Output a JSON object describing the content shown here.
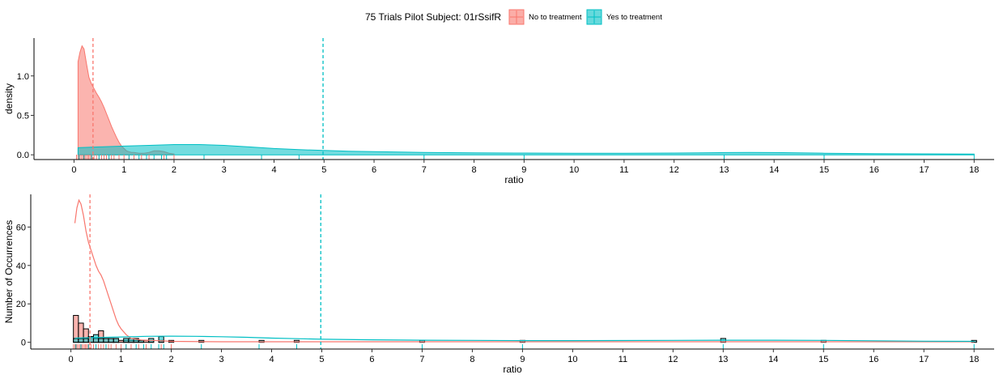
{
  "legend": {
    "title": "75 Trials Pilot Subject:  01rSsifR",
    "items": [
      {
        "label": "No to treatment",
        "color": "#F8766D"
      },
      {
        "label": "Yes to treatment",
        "color": "#00BFC4"
      }
    ]
  },
  "chart_data": [
    {
      "type": "area",
      "xlabel": "ratio",
      "ylabel": "density",
      "xlim": [
        -0.8,
        18.4
      ],
      "ylim": [
        -0.06,
        1.48
      ],
      "xticks": [
        0,
        1,
        2,
        3,
        4,
        5,
        6,
        7,
        8,
        9,
        10,
        11,
        12,
        13,
        14,
        15,
        16,
        17,
        18
      ],
      "yticks": [
        0.0,
        0.5,
        1.0
      ],
      "ytick_labels": [
        "0.0",
        "0.5",
        "1.0"
      ],
      "grid": false,
      "series": [
        {
          "name": "No to treatment",
          "color": "#F8766D",
          "mean": 0.38,
          "x": [
            0.08,
            0.12,
            0.16,
            0.2,
            0.25,
            0.3,
            0.35,
            0.4,
            0.45,
            0.5,
            0.55,
            0.6,
            0.65,
            0.7,
            0.75,
            0.8,
            0.85,
            0.9,
            0.95,
            1.0,
            1.05,
            1.1,
            1.15,
            1.2,
            1.3,
            1.4,
            1.5,
            1.6,
            1.7,
            1.8,
            1.9,
            2.0
          ],
          "y": [
            1.18,
            1.3,
            1.38,
            1.34,
            1.15,
            0.98,
            0.9,
            0.84,
            0.78,
            0.73,
            0.67,
            0.6,
            0.52,
            0.44,
            0.36,
            0.29,
            0.22,
            0.16,
            0.11,
            0.08,
            0.05,
            0.04,
            0.03,
            0.03,
            0.02,
            0.02,
            0.03,
            0.05,
            0.05,
            0.04,
            0.02,
            0.01
          ]
        },
        {
          "name": "Yes to treatment",
          "color": "#00BFC4",
          "mean": 4.98,
          "x": [
            0.08,
            0.5,
            1.0,
            1.5,
            2.0,
            2.5,
            3.0,
            3.5,
            4.0,
            4.5,
            5.0,
            5.5,
            6.0,
            7.0,
            8.0,
            9.0,
            10.0,
            11.0,
            12.0,
            12.5,
            13.0,
            13.5,
            14.0,
            14.5,
            15.0,
            16.0,
            17.0,
            18.0
          ],
          "y": [
            0.09,
            0.1,
            0.11,
            0.12,
            0.13,
            0.13,
            0.12,
            0.1,
            0.08,
            0.065,
            0.055,
            0.045,
            0.04,
            0.03,
            0.025,
            0.022,
            0.02,
            0.02,
            0.022,
            0.025,
            0.028,
            0.03,
            0.028,
            0.025,
            0.02,
            0.015,
            0.012,
            0.01
          ]
        }
      ],
      "rug": {
        "No to treatment": [
          0.05,
          0.08,
          0.1,
          0.12,
          0.15,
          0.18,
          0.2,
          0.22,
          0.25,
          0.28,
          0.3,
          0.33,
          0.36,
          0.4,
          0.45,
          0.5,
          0.55,
          0.6,
          0.65,
          0.7,
          0.75,
          0.8,
          0.9,
          1.0,
          1.1,
          1.2,
          1.35,
          1.5,
          1.8,
          2.0
        ],
        "Yes to treatment": [
          0.1,
          0.2,
          0.35,
          0.5,
          0.7,
          1.1,
          1.3,
          1.45,
          1.6,
          1.75,
          1.85,
          2.6,
          3.75,
          4.5,
          7.0,
          9.0,
          13.0,
          15.0,
          18.0
        ]
      }
    },
    {
      "type": "bar",
      "xlabel": "ratio",
      "ylabel": "Number of Occurrences",
      "xlim": [
        -0.8,
        18.4
      ],
      "ylim": [
        -3.5,
        77
      ],
      "xticks": [
        0,
        1,
        2,
        3,
        4,
        5,
        6,
        7,
        8,
        9,
        10,
        11,
        12,
        13,
        14,
        15,
        16,
        17,
        18
      ],
      "yticks": [
        0,
        20,
        40,
        60
      ],
      "grid": false,
      "bin_width": 0.1,
      "histogram": {
        "No to treatment": {
          "color": "#F8766D",
          "x": [
            0.1,
            0.2,
            0.3,
            0.4,
            0.5,
            0.6,
            0.7,
            0.8,
            0.9,
            1.0,
            1.1,
            1.2,
            1.3,
            1.4,
            1.5,
            1.6,
            1.8,
            2.0
          ],
          "counts": [
            14,
            10,
            7,
            3,
            2,
            6,
            2,
            2,
            2,
            1,
            1,
            1,
            1,
            1,
            1,
            1,
            1,
            1
          ]
        },
        "Yes to treatment": {
          "color": "#00BFC4",
          "x": [
            0.1,
            0.2,
            0.3,
            0.4,
            0.5,
            0.6,
            0.7,
            0.8,
            0.9,
            1.1,
            1.2,
            1.3,
            1.4,
            1.6,
            1.8,
            2.6,
            3.8,
            4.5,
            7.0,
            9.0,
            13.0,
            15.0,
            18.0
          ],
          "counts": [
            2,
            2,
            2,
            3,
            4,
            2,
            2,
            2,
            2,
            2,
            2,
            2,
            1,
            2,
            3,
            1,
            1,
            1,
            1,
            1,
            2,
            1,
            1
          ]
        }
      },
      "series": [
        {
          "name": "No to treatment",
          "color": "#F8766D",
          "mean": 0.38,
          "x": [
            0.08,
            0.12,
            0.16,
            0.2,
            0.25,
            0.3,
            0.35,
            0.4,
            0.45,
            0.5,
            0.55,
            0.6,
            0.65,
            0.7,
            0.75,
            0.8,
            0.85,
            0.9,
            0.95,
            1.0,
            1.1,
            1.2,
            1.4,
            1.6,
            1.8,
            2.0,
            3.0,
            5.0,
            10.0,
            18.0
          ],
          "y": [
            62,
            70,
            74,
            72,
            66,
            58,
            52,
            48,
            44,
            40,
            37,
            35,
            32,
            28,
            24,
            20,
            16,
            12,
            9,
            7,
            4,
            2,
            1.2,
            1,
            0.8,
            0.5,
            0.3,
            0.3,
            0.3,
            0.3
          ]
        },
        {
          "name": "Yes to treatment",
          "color": "#00BFC4",
          "mean": 4.98,
          "x": [
            0.08,
            0.5,
            1.0,
            1.5,
            2.0,
            2.5,
            3.0,
            3.5,
            4.0,
            4.5,
            5.0,
            6.0,
            7.0,
            8.0,
            9.0,
            10.0,
            12.0,
            13.0,
            14.0,
            15.0,
            16.0,
            17.0,
            18.0
          ],
          "y": [
            2.2,
            2.5,
            2.8,
            3.1,
            3.2,
            3.1,
            2.9,
            2.6,
            2.2,
            1.9,
            1.6,
            1.3,
            1.1,
            1.0,
            0.9,
            0.9,
            1.0,
            1.1,
            1.1,
            1.0,
            0.8,
            0.6,
            0.5
          ]
        }
      ],
      "rug": {
        "No to treatment": [
          0.05,
          0.08,
          0.1,
          0.12,
          0.15,
          0.18,
          0.2,
          0.22,
          0.25,
          0.28,
          0.3,
          0.33,
          0.36,
          0.4,
          0.45,
          0.5,
          0.55,
          0.6,
          0.65,
          0.7,
          0.75,
          0.8,
          0.9,
          1.0,
          1.1,
          1.2,
          1.35,
          1.5,
          1.8,
          2.0
        ],
        "Yes to treatment": [
          0.1,
          0.2,
          0.35,
          0.5,
          0.7,
          1.1,
          1.3,
          1.45,
          1.6,
          1.75,
          1.85,
          2.6,
          3.75,
          4.5,
          7.0,
          9.0,
          13.0,
          15.0,
          18.0
        ]
      }
    }
  ]
}
